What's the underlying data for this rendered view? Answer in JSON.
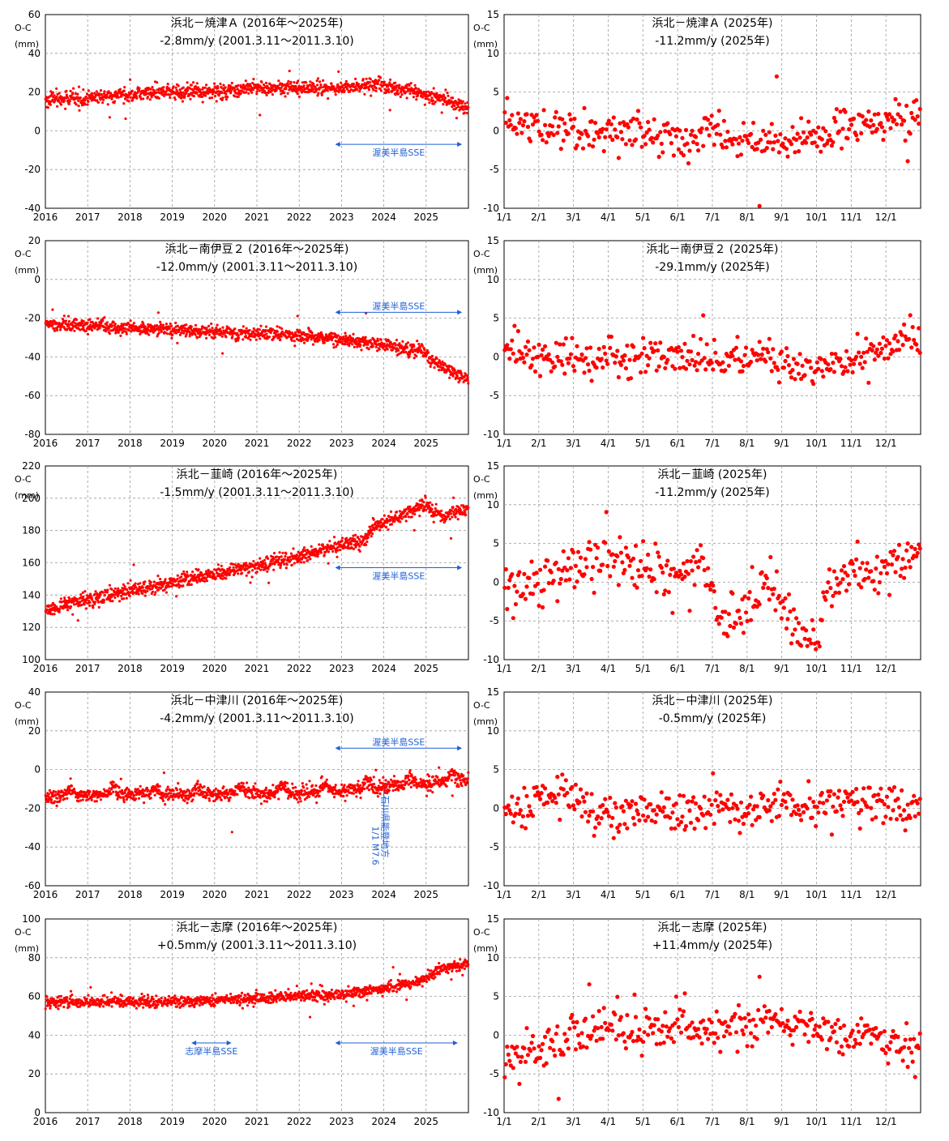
{
  "chart_data": [
    {
      "id": "c1",
      "type": "scatter",
      "title": "浜北－焼津Ａ (2016年～2025年)",
      "subtitle": "-2.8mm/y (2001.3.11～2011.3.10)",
      "ylabel": "O-C",
      "yunit": "(mm)",
      "xkind": "years",
      "ylim": [
        -40,
        60
      ],
      "ytick_labels": [
        "60",
        "40",
        "20",
        "0",
        "-20",
        "-40"
      ],
      "xtick_labels": [
        "2016",
        "2017",
        "2018",
        "2019",
        "2020",
        "2021",
        "2022",
        "2023",
        "2024",
        "2025"
      ],
      "series_keypoints": [
        [
          2016,
          16
        ],
        [
          2017,
          17
        ],
        [
          2018,
          19
        ],
        [
          2019,
          20
        ],
        [
          2020,
          20
        ],
        [
          2021,
          22
        ],
        [
          2022,
          22
        ],
        [
          2023,
          22
        ],
        [
          2023.8,
          24
        ],
        [
          2024.5,
          21
        ],
        [
          2025,
          19
        ],
        [
          2025.4,
          16
        ],
        [
          2025.95,
          12
        ]
      ],
      "noise": 1.8,
      "annotations": [
        {
          "text": "渥美半島SSE",
          "start": 2022.85,
          "end": 2025.85,
          "level": -7,
          "label_pos": "below"
        }
      ]
    },
    {
      "id": "c2",
      "type": "scatter",
      "title": "浜北－焼津Ａ (2025年)",
      "subtitle": "-11.2mm/y (2025年)",
      "ylabel": "O-C",
      "yunit": "(mm)",
      "xkind": "months",
      "ylim": [
        -10,
        15
      ],
      "ytick_labels": [
        "15",
        "10",
        "5",
        "0",
        "-5",
        "-10"
      ],
      "xtick_labels": [
        "1/1",
        "2/1",
        "3/1",
        "4/1",
        "5/1",
        "6/1",
        "7/1",
        "8/1",
        "9/1",
        "10/1",
        "11/1",
        "12/1"
      ],
      "series_keypoints": [
        [
          0,
          1.5
        ],
        [
          1,
          0.5
        ],
        [
          2,
          0
        ],
        [
          3,
          0
        ],
        [
          4,
          -0.5
        ],
        [
          5,
          -0.5
        ],
        [
          6,
          -0.5
        ],
        [
          7,
          -1.5
        ],
        [
          8,
          -1.5
        ],
        [
          9,
          -0.5
        ],
        [
          10,
          0.5
        ],
        [
          11,
          1
        ],
        [
          12,
          1.5
        ]
      ],
      "noise": 1.2,
      "annotations": []
    },
    {
      "id": "c3",
      "type": "scatter",
      "title": "浜北－南伊豆２ (2016年～2025年)",
      "subtitle": "-12.0mm/y (2001.3.11～2011.3.10)",
      "ylabel": "O-C",
      "yunit": "(mm)",
      "xkind": "years",
      "ylim": [
        -80,
        20
      ],
      "ytick_labels": [
        "20",
        "0",
        "-20",
        "-40",
        "-60",
        "-80"
      ],
      "xtick_labels": [
        "2016",
        "2017",
        "2018",
        "2019",
        "2020",
        "2021",
        "2022",
        "2023",
        "2024",
        "2025"
      ],
      "series_keypoints": [
        [
          2016,
          -23
        ],
        [
          2018,
          -25
        ],
        [
          2020,
          -27
        ],
        [
          2022,
          -29
        ],
        [
          2023,
          -31
        ],
        [
          2024,
          -34
        ],
        [
          2024.9,
          -37
        ],
        [
          2025.3,
          -44
        ],
        [
          2025.95,
          -51
        ]
      ],
      "noise": 1.6,
      "annotations": [
        {
          "text": "渥美半島SSE",
          "start": 2022.85,
          "end": 2025.85,
          "level": -17,
          "label_pos": "above"
        }
      ]
    },
    {
      "id": "c4",
      "type": "scatter",
      "title": "浜北－南伊豆２ (2025年)",
      "subtitle": "-29.1mm/y (2025年)",
      "ylabel": "O-C",
      "yunit": "(mm)",
      "xkind": "months",
      "ylim": [
        -10,
        15
      ],
      "ytick_labels": [
        "15",
        "10",
        "5",
        "0",
        "-5",
        "-10"
      ],
      "xtick_labels": [
        "1/1",
        "2/1",
        "3/1",
        "4/1",
        "5/1",
        "6/1",
        "7/1",
        "8/1",
        "9/1",
        "10/1",
        "11/1",
        "12/1"
      ],
      "series_keypoints": [
        [
          0,
          1.5
        ],
        [
          1,
          0
        ],
        [
          2,
          -0.5
        ],
        [
          3,
          0
        ],
        [
          4,
          0
        ],
        [
          5,
          0
        ],
        [
          6,
          0
        ],
        [
          7,
          0
        ],
        [
          8,
          -0.5
        ],
        [
          9,
          -1.5
        ],
        [
          10,
          -0.5
        ],
        [
          11,
          1
        ],
        [
          12,
          2.5
        ]
      ],
      "noise": 1.2,
      "annotations": []
    },
    {
      "id": "c5",
      "type": "scatter",
      "title": "浜北－韮崎 (2016年～2025年)",
      "subtitle": "-1.5mm/y (2001.3.11～2011.3.10)",
      "ylabel": "O-C",
      "yunit": "(mm)",
      "xkind": "years",
      "ylim": [
        100,
        220
      ],
      "ytick_labels": [
        "220",
        "200",
        "180",
        "160",
        "140",
        "120",
        "100"
      ],
      "xtick_labels": [
        "2016",
        "2017",
        "2018",
        "2019",
        "2020",
        "2021",
        "2022",
        "2023",
        "2024",
        "2025"
      ],
      "series_keypoints": [
        [
          2016,
          131
        ],
        [
          2017,
          137
        ],
        [
          2018,
          143
        ],
        [
          2019,
          148
        ],
        [
          2020,
          153
        ],
        [
          2021,
          158
        ],
        [
          2022,
          164
        ],
        [
          2023,
          171
        ],
        [
          2023.5,
          173
        ],
        [
          2023.75,
          182
        ],
        [
          2024.3,
          188
        ],
        [
          2025,
          196
        ],
        [
          2025.4,
          188
        ],
        [
          2025.95,
          193
        ]
      ],
      "noise": 2.2,
      "annotations": [
        {
          "text": "渥美半島SSE",
          "start": 2022.85,
          "end": 2025.85,
          "level": 157,
          "label_pos": "below"
        }
      ]
    },
    {
      "id": "c6",
      "type": "scatter",
      "title": "浜北－韮崎 (2025年)",
      "subtitle": "-11.2mm/y (2025年)",
      "ylabel": "O-C",
      "yunit": "(mm)",
      "xkind": "months",
      "ylim": [
        -10,
        15
      ],
      "ytick_labels": [
        "15",
        "10",
        "5",
        "0",
        "-5",
        "-10"
      ],
      "xtick_labels": [
        "1/1",
        "2/1",
        "3/1",
        "4/1",
        "5/1",
        "6/1",
        "7/1",
        "8/1",
        "9/1",
        "10/1",
        "11/1",
        "12/1"
      ],
      "series_keypoints": [
        [
          0,
          -1
        ],
        [
          1,
          1
        ],
        [
          2,
          2
        ],
        [
          3,
          3
        ],
        [
          4,
          2.5
        ],
        [
          5,
          1.5
        ],
        [
          5.8,
          1.5
        ],
        [
          6.3,
          -5
        ],
        [
          7,
          -4
        ],
        [
          7.7,
          0
        ],
        [
          8.3,
          -6
        ],
        [
          9,
          -8
        ],
        [
          9.3,
          -1
        ],
        [
          10,
          1.5
        ],
        [
          11,
          2
        ],
        [
          12,
          4.5
        ]
      ],
      "noise": 1.7,
      "annotations": []
    },
    {
      "id": "c7",
      "type": "scatter",
      "title": "浜北－中津川 (2016年～2025年)",
      "subtitle": "-4.2mm/y (2001.3.11～2011.3.10)",
      "ylabel": "O-C",
      "yunit": "(mm)",
      "xkind": "years",
      "ylim": [
        -60,
        40
      ],
      "ytick_labels": [
        "40",
        "20",
        "0",
        "-20",
        "-40",
        "-60"
      ],
      "xtick_labels": [
        "2016",
        "2017",
        "2018",
        "2019",
        "2020",
        "2021",
        "2022",
        "2023",
        "2024",
        "2025"
      ],
      "series_keypoints": [
        [
          2016,
          -14
        ],
        [
          2017,
          -13
        ],
        [
          2018,
          -13
        ],
        [
          2019,
          -13
        ],
        [
          2020,
          -13
        ],
        [
          2021,
          -12
        ],
        [
          2022,
          -12
        ],
        [
          2023,
          -11
        ],
        [
          2024,
          -9
        ],
        [
          2025,
          -7
        ],
        [
          2025.95,
          -5
        ]
      ],
      "seasonal": 4,
      "noise": 1.8,
      "annotations": [
        {
          "text": "渥美半島SSE",
          "start": 2022.85,
          "end": 2025.85,
          "level": 11,
          "label_pos": "above"
        },
        {
          "text": "石川県能登地方",
          "text2": "1/1 M7.6",
          "x": 2024.0,
          "level": -10,
          "kind": "vertical"
        }
      ]
    },
    {
      "id": "c8",
      "type": "scatter",
      "title": "浜北－中津川 (2025年)",
      "subtitle": "-0.5mm/y (2025年)",
      "ylabel": "O-C",
      "yunit": "(mm)",
      "xkind": "months",
      "ylim": [
        -10,
        15
      ],
      "ytick_labels": [
        "15",
        "10",
        "5",
        "0",
        "-5",
        "-10"
      ],
      "xtick_labels": [
        "1/1",
        "2/1",
        "3/1",
        "4/1",
        "5/1",
        "6/1",
        "7/1",
        "8/1",
        "9/1",
        "10/1",
        "11/1",
        "12/1"
      ],
      "series_keypoints": [
        [
          0,
          0
        ],
        [
          1,
          1
        ],
        [
          1.8,
          2
        ],
        [
          2.5,
          -1
        ],
        [
          3,
          -1
        ],
        [
          4,
          -0.5
        ],
        [
          5,
          -0.5
        ],
        [
          6,
          0
        ],
        [
          7,
          -0.5
        ],
        [
          8,
          0.5
        ],
        [
          9,
          0
        ],
        [
          10,
          1
        ],
        [
          11,
          0.5
        ],
        [
          12,
          0
        ]
      ],
      "noise": 1.3,
      "annotations": []
    },
    {
      "id": "c9",
      "type": "scatter",
      "title": "浜北－志摩 (2016年～2025年)",
      "subtitle": "+0.5mm/y (2001.3.11～2011.3.10)",
      "ylabel": "O-C",
      "yunit": "(mm)",
      "xkind": "years",
      "ylim": [
        0,
        100
      ],
      "ytick_labels": [
        "100",
        "80",
        "60",
        "40",
        "20",
        "0"
      ],
      "xtick_labels": [
        "2016",
        "2017",
        "2018",
        "2019",
        "2020",
        "2021",
        "2022",
        "2023",
        "2024",
        "2025"
      ],
      "series_keypoints": [
        [
          2016,
          57
        ],
        [
          2018,
          57
        ],
        [
          2020,
          58
        ],
        [
          2022,
          60
        ],
        [
          2023,
          61
        ],
        [
          2024,
          64
        ],
        [
          2024.9,
          68
        ],
        [
          2025.3,
          74
        ],
        [
          2025.95,
          77
        ]
      ],
      "noise": 1.4,
      "annotations": [
        {
          "text": "志摩半島SSE",
          "start": 2019.45,
          "end": 2020.4,
          "level": 36,
          "label_pos": "below"
        },
        {
          "text": "渥美半島SSE",
          "start": 2022.85,
          "end": 2025.75,
          "level": 36,
          "label_pos": "below"
        }
      ]
    },
    {
      "id": "c10",
      "type": "scatter",
      "title": "浜北－志摩 (2025年)",
      "subtitle": "+11.4mm/y (2025年)",
      "ylabel": "O-C",
      "yunit": "(mm)",
      "xkind": "months",
      "ylim": [
        -10,
        15
      ],
      "ytick_labels": [
        "15",
        "10",
        "5",
        "0",
        "-5",
        "-10"
      ],
      "xtick_labels": [
        "1/1",
        "2/1",
        "3/1",
        "4/1",
        "5/1",
        "6/1",
        "7/1",
        "8/1",
        "9/1",
        "10/1",
        "11/1",
        "12/1"
      ],
      "series_keypoints": [
        [
          0,
          -3
        ],
        [
          1,
          -2
        ],
        [
          2,
          0
        ],
        [
          3,
          1.5
        ],
        [
          4,
          1
        ],
        [
          5,
          1.5
        ],
        [
          6,
          1
        ],
        [
          7,
          1
        ],
        [
          8,
          2
        ],
        [
          9,
          0.5
        ],
        [
          10,
          0
        ],
        [
          11,
          -1
        ],
        [
          12,
          -2.5
        ]
      ],
      "noise": 1.3,
      "annotations": []
    }
  ]
}
